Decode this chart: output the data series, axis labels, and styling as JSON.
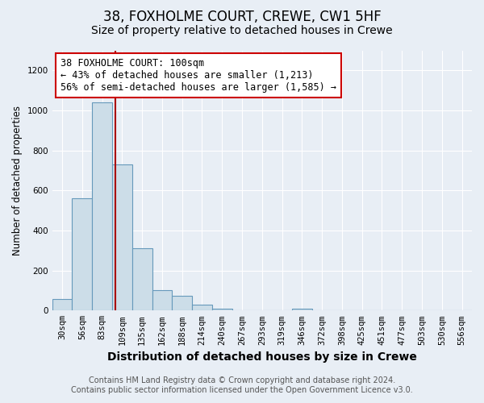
{
  "title": "38, FOXHOLME COURT, CREWE, CW1 5HF",
  "subtitle": "Size of property relative to detached houses in Crewe",
  "xlabel": "Distribution of detached houses by size in Crewe",
  "ylabel": "Number of detached properties",
  "footer_line1": "Contains HM Land Registry data © Crown copyright and database right 2024.",
  "footer_line2": "Contains public sector information licensed under the Open Government Licence v3.0.",
  "bin_labels": [
    "30sqm",
    "56sqm",
    "83sqm",
    "109sqm",
    "135sqm",
    "162sqm",
    "188sqm",
    "214sqm",
    "240sqm",
    "267sqm",
    "293sqm",
    "319sqm",
    "346sqm",
    "372sqm",
    "398sqm",
    "425sqm",
    "451sqm",
    "477sqm",
    "503sqm",
    "530sqm",
    "556sqm"
  ],
  "bar_values": [
    57,
    560,
    1040,
    730,
    310,
    100,
    75,
    30,
    10,
    0,
    0,
    0,
    10,
    0,
    0,
    0,
    0,
    0,
    0,
    0,
    0
  ],
  "bar_color": "#ccdde8",
  "bar_edgecolor": "#6699bb",
  "annotation_text": "38 FOXHOLME COURT: 100sqm\n← 43% of detached houses are smaller (1,213)\n56% of semi-detached houses are larger (1,585) →",
  "annotation_box_color": "#ffffff",
  "annotation_box_edgecolor": "#cc0000",
  "vline_color": "#aa0000",
  "vline_x": 2.65,
  "ylim": [
    0,
    1300
  ],
  "yticks": [
    0,
    200,
    400,
    600,
    800,
    1000,
    1200
  ],
  "background_color": "#e8eef5",
  "plot_background_color": "#e8eef5",
  "title_fontsize": 12,
  "subtitle_fontsize": 10,
  "xlabel_fontsize": 10,
  "ylabel_fontsize": 8.5,
  "tick_fontsize": 7.5,
  "annotation_fontsize": 8.5,
  "footer_fontsize": 7
}
